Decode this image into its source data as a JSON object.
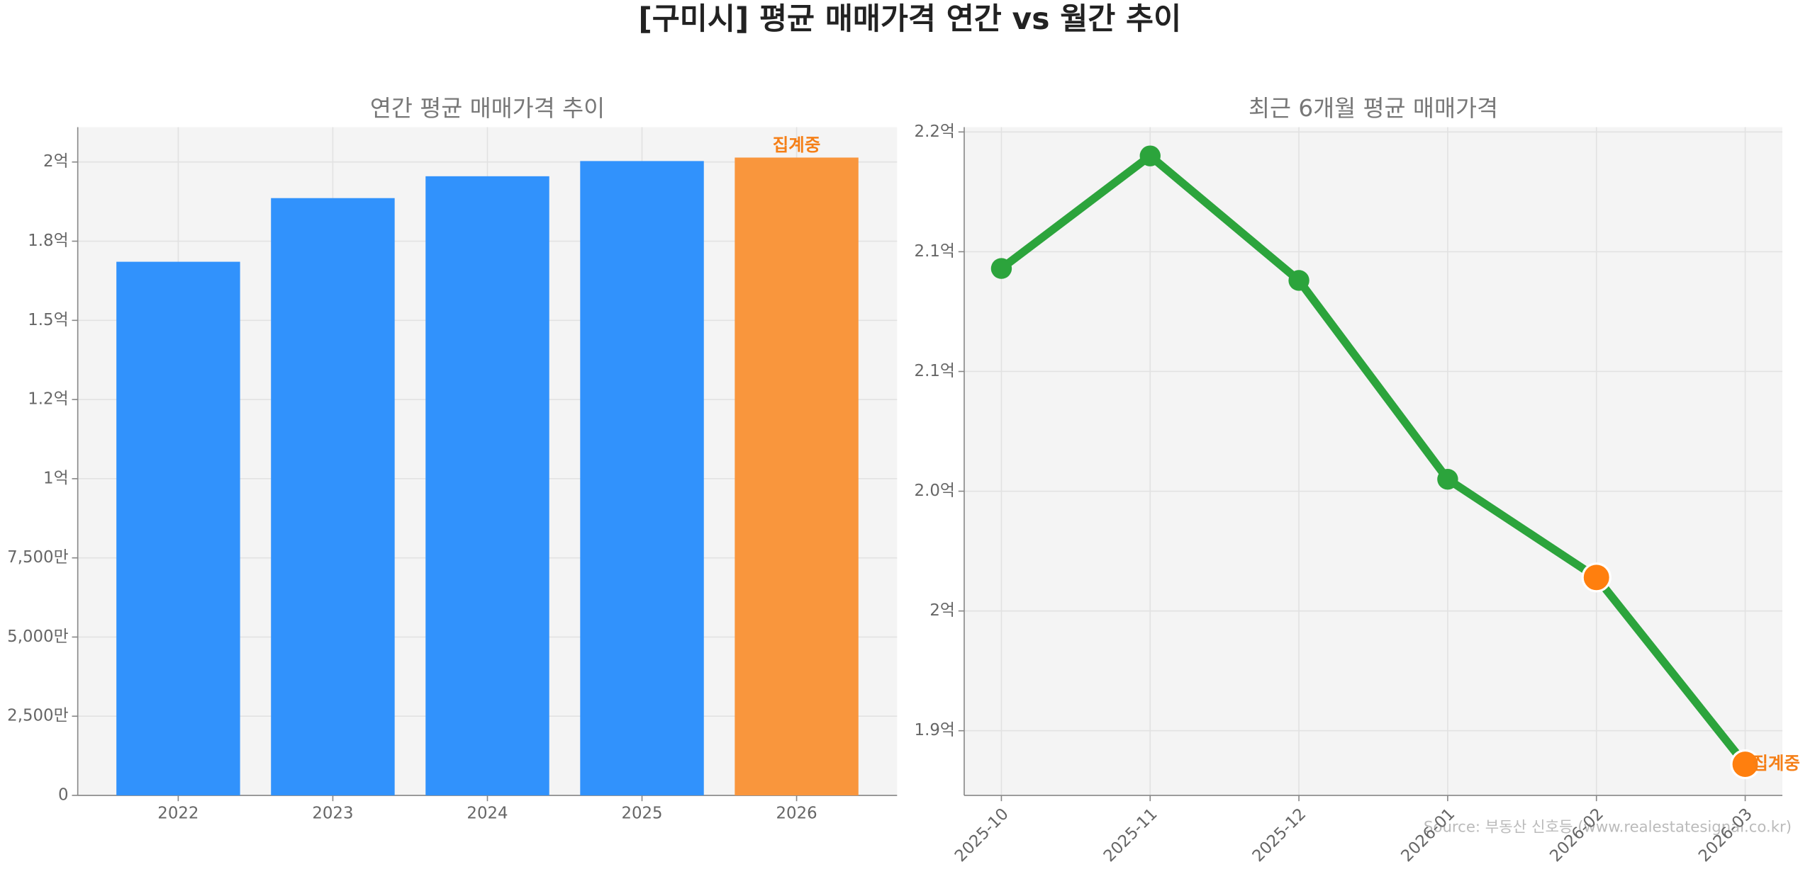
{
  "title": "[구미시] 평균 매매가격 연간 vs 월간 추이",
  "source": "Source: 부동산 신호등 (www.realestatesignal.co.kr)",
  "chart_data": [
    {
      "type": "bar",
      "title": "연간 평균 매매가격 추이",
      "categories": [
        "2022",
        "2023",
        "2024",
        "2025",
        "2026"
      ],
      "values": [
        168500000,
        188600000,
        195500000,
        200300000,
        201400000
      ],
      "colors": [
        "#3192fc",
        "#3192fc",
        "#3192fc",
        "#3192fc",
        "#f9963d"
      ],
      "ylim": [
        0,
        211000000
      ],
      "yticks": [
        0,
        {
          "value": 25000000,
          "label": "2,500만"
        },
        {
          "value": 50000000,
          "label": "5,000만"
        },
        {
          "value": 75000000,
          "label": "7,500만"
        },
        {
          "value": 100000000,
          "label": "1억"
        },
        {
          "value": 125000000,
          "label": "1.2억"
        },
        {
          "value": 150000000,
          "label": "1.5억"
        },
        {
          "value": 175000000,
          "label": "1.8억"
        },
        {
          "value": 200000000,
          "label": "2억"
        }
      ],
      "grid": true,
      "annotations": [
        {
          "text": "집계중",
          "x": "2026"
        }
      ]
    },
    {
      "type": "line",
      "title": "최근 6개월 평균 매매가격",
      "categories": [
        "2025-10",
        "2025-11",
        "2025-12",
        "2026-01",
        "2026-02",
        "2026-03"
      ],
      "values": [
        209300000,
        214000000,
        208800000,
        200500000,
        196400000,
        188600000
      ],
      "color": "#2ca43c",
      "marker_colors": [
        "#2ca43c",
        "#2ca43c",
        "#2ca43c",
        "#2ca43c",
        "#ff7f0e",
        "#ff7f0e"
      ],
      "ylim": [
        187300000,
        215200000
      ],
      "yticks": [
        {
          "value": 190000000,
          "label": "1.9억"
        },
        {
          "value": 195000000,
          "label": "2억"
        },
        {
          "value": 200000000,
          "label": "2.0억"
        },
        {
          "value": 205000000,
          "label": "2.1억"
        },
        {
          "value": 210000000,
          "label": "2.1억"
        },
        {
          "value": 215000000,
          "label": "2.2억"
        }
      ],
      "grid": true,
      "annotations": [
        {
          "text": "집계중",
          "x": "2026-03"
        }
      ]
    }
  ]
}
